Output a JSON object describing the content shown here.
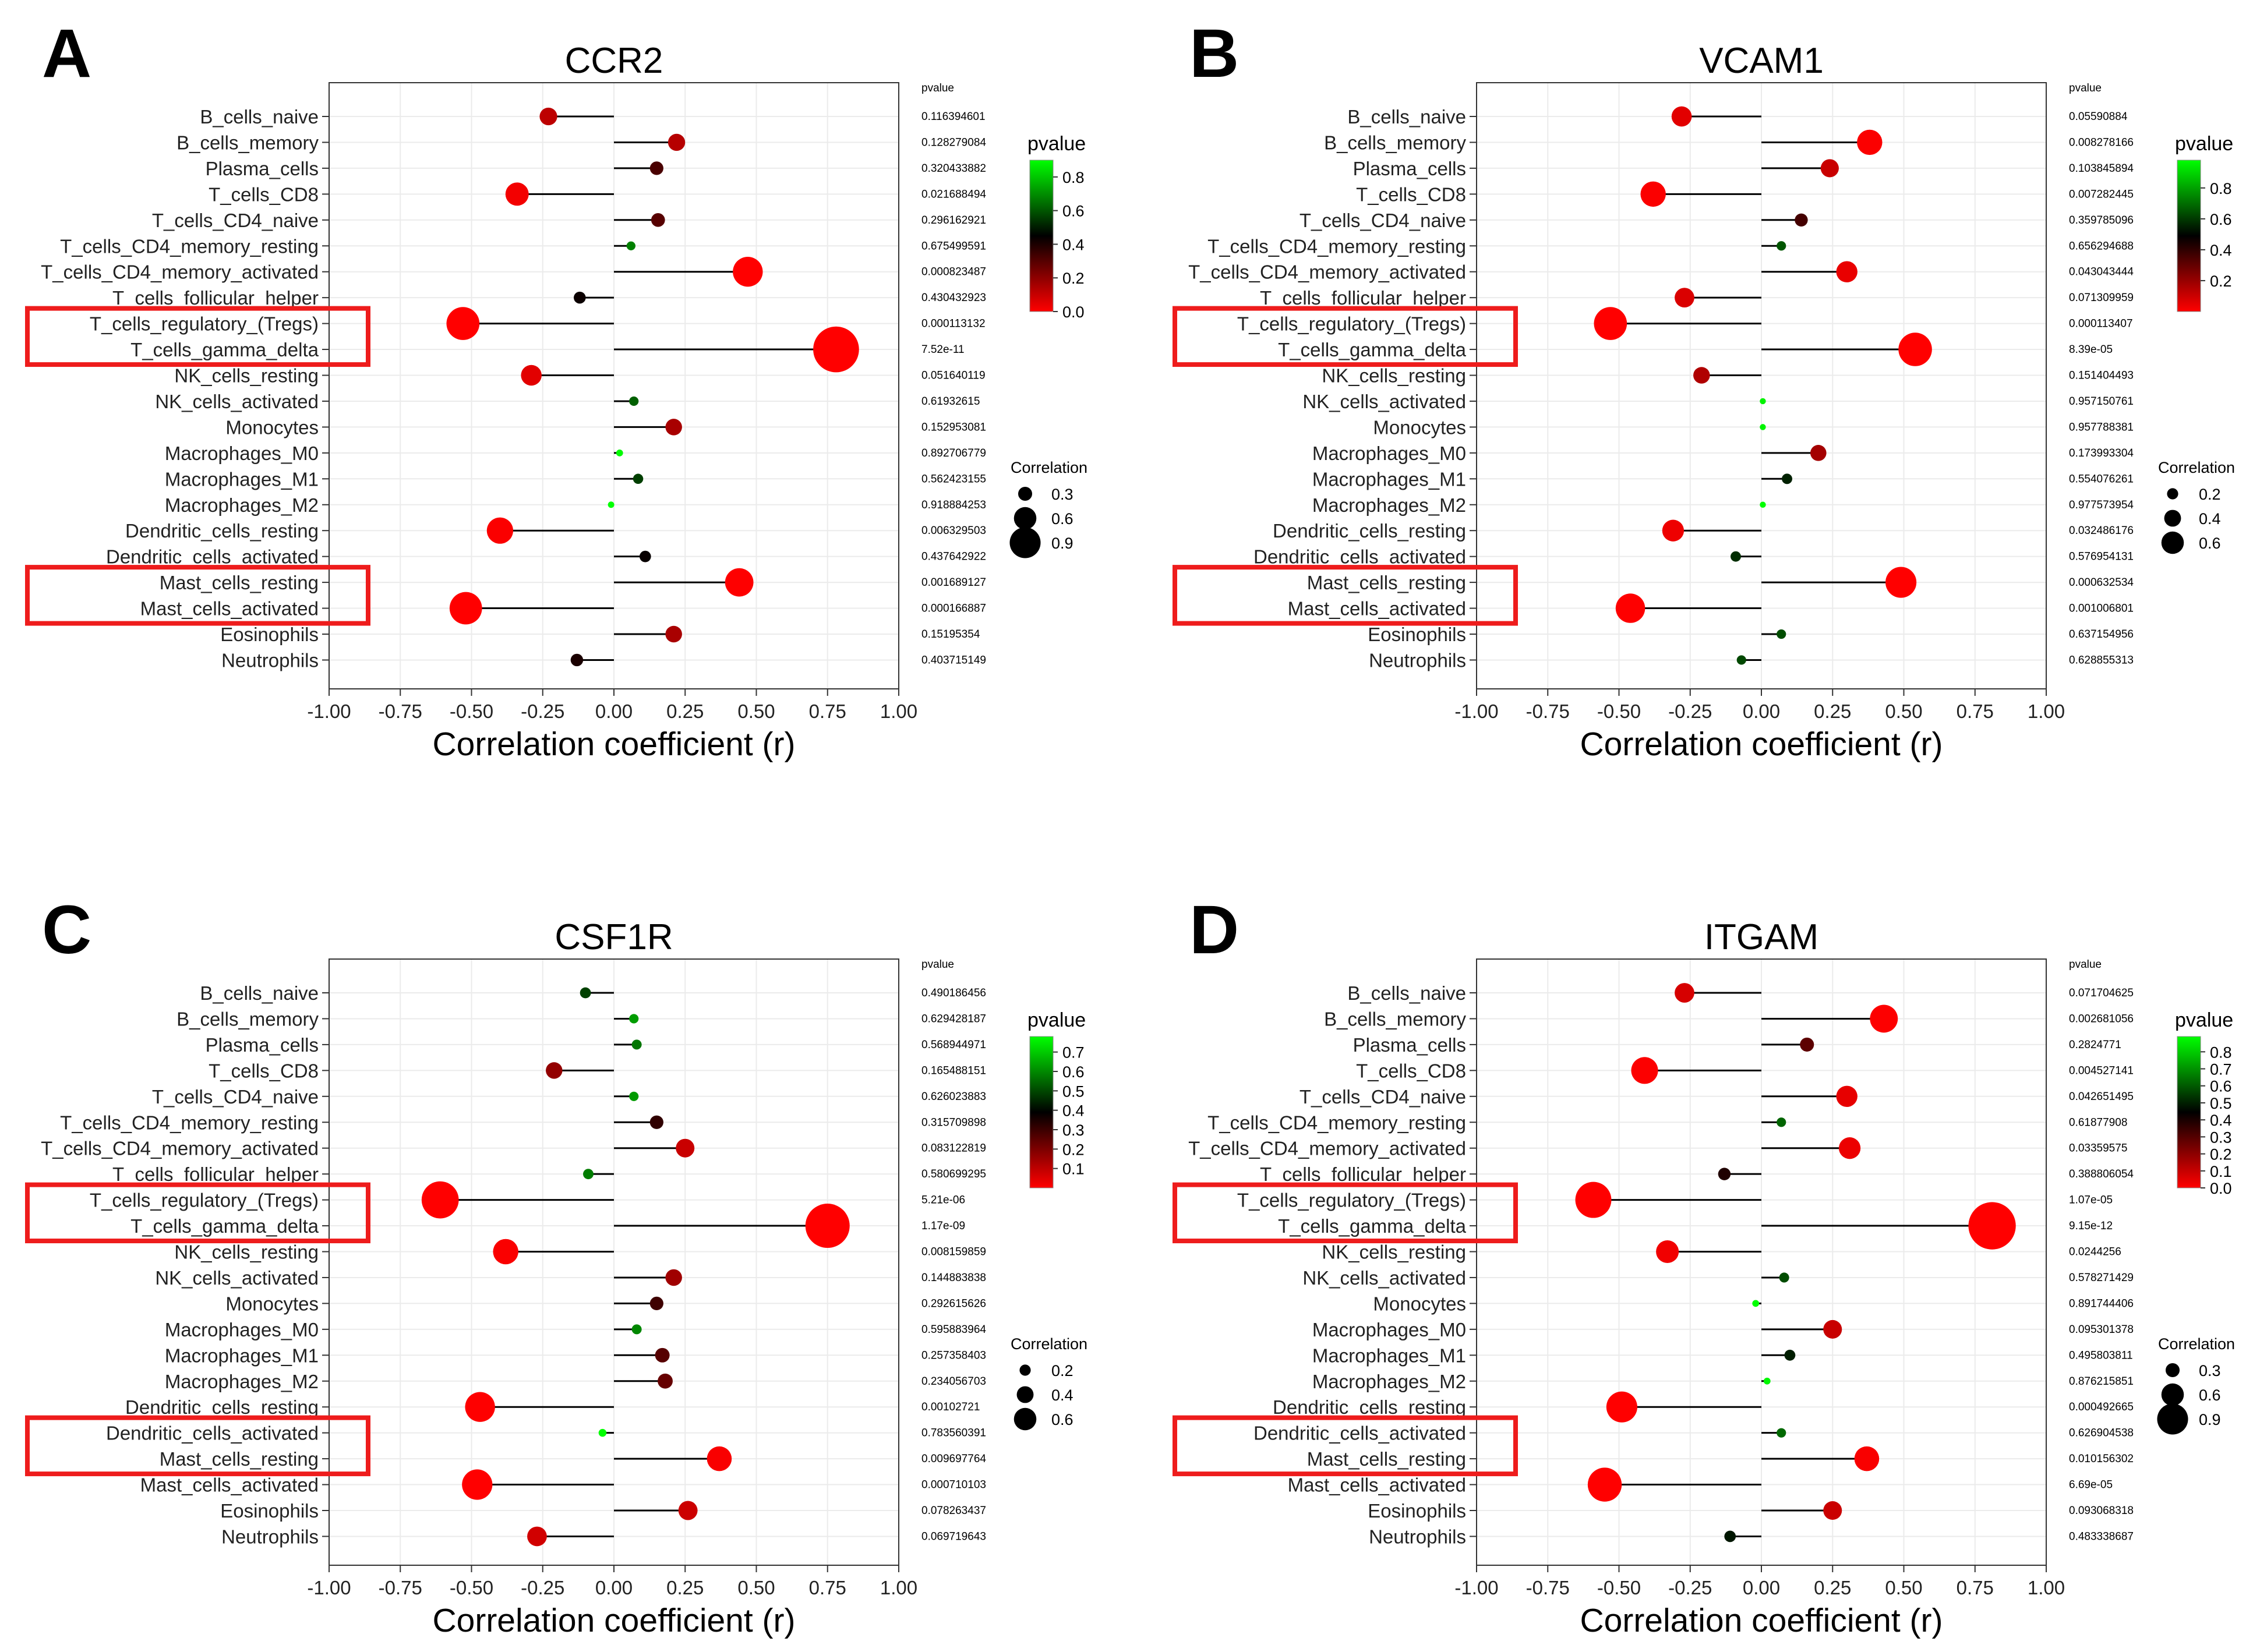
{
  "panel_colors": {
    "low_p": "#ff0000",
    "mid_p": "#000000",
    "high_p": "#00ff00",
    "highlight_box": "#ee1c1c"
  },
  "axis": {
    "xlabel": "Correlation coefficient (r)",
    "xticks": [
      "-1.00",
      "-0.75",
      "-0.50",
      "-0.25",
      "0.00",
      "0.25",
      "0.50",
      "0.75",
      "1.00"
    ]
  },
  "legend_labels": {
    "pvalue_header": "pvalue",
    "pvalue_title": "pvalue",
    "size_title": "Correlation"
  },
  "chart_data": [
    {
      "type": "lollipop",
      "panel_letter": "A",
      "title": "CCR2",
      "xlim": [
        -1,
        1
      ],
      "pmax": 0.9,
      "categories": [
        "B_cells_naive",
        "B_cells_memory",
        "Plasma_cells",
        "T_cells_CD8",
        "T_cells_CD4_naive",
        "T_cells_CD4_memory_resting",
        "T_cells_CD4_memory_activated",
        "T_cells_follicular_helper",
        "T_cells_regulatory_(Tregs)",
        "T_cells_gamma_delta",
        "NK_cells_resting",
        "NK_cells_activated",
        "Monocytes",
        "Macrophages_M0",
        "Macrophages_M1",
        "Macrophages_M2",
        "Dendritic_cells_resting",
        "Dendritic_cells_activated",
        "Mast_cells_resting",
        "Mast_cells_activated",
        "Eosinophils",
        "Neutrophils"
      ],
      "values": [
        -0.23,
        0.22,
        0.15,
        -0.34,
        0.155,
        0.06,
        0.47,
        -0.12,
        -0.53,
        0.78,
        -0.29,
        0.07,
        0.21,
        0.02,
        0.085,
        -0.01,
        -0.4,
        0.11,
        0.44,
        -0.52,
        0.21,
        -0.13
      ],
      "pvalue_text": [
        "0.116394601",
        "0.128279084",
        "0.320433882",
        "0.021688494",
        "0.296162921",
        "0.675499591",
        "0.000823487",
        "0.430432923",
        "0.000113132",
        "7.52e-11",
        "0.051640119",
        "0.61932615",
        "0.152953081",
        "0.892706779",
        "0.562423155",
        "0.918884253",
        "0.006329503",
        "0.437642922",
        "0.001689127",
        "0.000166887",
        "0.15195354",
        "0.403715149"
      ],
      "pvalues": [
        0.116,
        0.128,
        0.32,
        0.0217,
        0.296,
        0.675,
        0.0008,
        0.43,
        0.0001,
        0.0,
        0.0516,
        0.619,
        0.153,
        0.893,
        0.562,
        0.919,
        0.0063,
        0.438,
        0.0017,
        0.0002,
        0.152,
        0.404
      ],
      "highlight_groups": [
        [
          8,
          9
        ],
        [
          18,
          19
        ]
      ],
      "pvalue_legend_ticks": [
        "0.8",
        "0.6",
        "0.4",
        "0.2",
        "0.0"
      ],
      "pvalue_legend_tick_values": [
        0.8,
        0.6,
        0.4,
        0.2,
        0.0
      ],
      "size_legend_labels": [
        "0.3",
        "0.6",
        "0.9"
      ],
      "size_legend_values": [
        0.3,
        0.6,
        0.9
      ]
    },
    {
      "type": "lollipop",
      "panel_letter": "B",
      "title": "VCAM1",
      "xlim": [
        -1,
        1
      ],
      "pmax": 0.98,
      "categories": [
        "B_cells_naive",
        "B_cells_memory",
        "Plasma_cells",
        "T_cells_CD8",
        "T_cells_CD4_naive",
        "T_cells_CD4_memory_resting",
        "T_cells_CD4_memory_activated",
        "T_cells_follicular_helper",
        "T_cells_regulatory_(Tregs)",
        "T_cells_gamma_delta",
        "NK_cells_resting",
        "NK_cells_activated",
        "Monocytes",
        "Macrophages_M0",
        "Macrophages_M1",
        "Macrophages_M2",
        "Dendritic_cells_resting",
        "Dendritic_cells_activated",
        "Mast_cells_resting",
        "Mast_cells_activated",
        "Eosinophils",
        "Neutrophils"
      ],
      "values": [
        -0.28,
        0.38,
        0.24,
        -0.38,
        0.14,
        0.07,
        0.3,
        -0.27,
        -0.53,
        0.54,
        -0.21,
        0.005,
        0.005,
        0.2,
        0.09,
        0.005,
        -0.31,
        -0.09,
        0.49,
        -0.46,
        0.07,
        -0.07
      ],
      "pvalue_text": [
        "0.05590884",
        "0.008278166",
        "0.103845894",
        "0.007282445",
        "0.359785096",
        "0.656294688",
        "0.043043444",
        "0.071309959",
        "0.000113407",
        "8.39e-05",
        "0.151404493",
        "0.957150761",
        "0.957788381",
        "0.173993304",
        "0.554076261",
        "0.977573954",
        "0.032486176",
        "0.576954131",
        "0.000632534",
        "0.001006801",
        "0.637154956",
        "0.628855313"
      ],
      "pvalues": [
        0.0559,
        0.0083,
        0.104,
        0.0073,
        0.36,
        0.656,
        0.043,
        0.0713,
        0.0001,
        0.0001,
        0.151,
        0.957,
        0.958,
        0.174,
        0.554,
        0.978,
        0.0325,
        0.577,
        0.0006,
        0.001,
        0.637,
        0.629
      ],
      "highlight_groups": [
        [
          8,
          9
        ],
        [
          18,
          19
        ]
      ],
      "pvalue_legend_ticks": [
        "0.8",
        "0.6",
        "0.4",
        "0.2"
      ],
      "pvalue_legend_tick_values": [
        0.8,
        0.6,
        0.4,
        0.2
      ],
      "size_legend_labels": [
        "0.2",
        "0.4",
        "0.6"
      ],
      "size_legend_values": [
        0.2,
        0.4,
        0.6
      ]
    },
    {
      "type": "lollipop",
      "panel_letter": "C",
      "title": "CSF1R",
      "xlim": [
        -1,
        1
      ],
      "pmax": 0.78,
      "categories": [
        "B_cells_naive",
        "B_cells_memory",
        "Plasma_cells",
        "T_cells_CD8",
        "T_cells_CD4_naive",
        "T_cells_CD4_memory_resting",
        "T_cells_CD4_memory_activated",
        "T_cells_follicular_helper",
        "T_cells_regulatory_(Tregs)",
        "T_cells_gamma_delta",
        "NK_cells_resting",
        "NK_cells_activated",
        "Monocytes",
        "Macrophages_M0",
        "Macrophages_M1",
        "Macrophages_M2",
        "Dendritic_cells_resting",
        "Dendritic_cells_activated",
        "Mast_cells_resting",
        "Mast_cells_activated",
        "Eosinophils",
        "Neutrophils"
      ],
      "values": [
        -0.1,
        0.07,
        0.08,
        -0.21,
        0.07,
        0.15,
        0.25,
        -0.09,
        -0.61,
        0.75,
        -0.38,
        0.21,
        0.15,
        0.08,
        0.17,
        0.18,
        -0.47,
        -0.04,
        0.37,
        -0.48,
        0.26,
        -0.27
      ],
      "pvalue_text": [
        "0.490186456",
        "0.629428187",
        "0.568944971",
        "0.165488151",
        "0.626023883",
        "0.315709898",
        "0.083122819",
        "0.580699295",
        "5.21e-06",
        "1.17e-09",
        "0.008159859",
        "0.144883838",
        "0.292615626",
        "0.595883964",
        "0.257358403",
        "0.234056703",
        "0.00102721",
        "0.783560391",
        "0.009697764",
        "0.000710103",
        "0.078263437",
        "0.069719643"
      ],
      "pvalues": [
        0.49,
        0.629,
        0.569,
        0.165,
        0.626,
        0.316,
        0.0831,
        0.581,
        0.0,
        0.0,
        0.0082,
        0.145,
        0.293,
        0.596,
        0.257,
        0.234,
        0.001,
        0.784,
        0.0097,
        0.0007,
        0.0783,
        0.0697
      ],
      "highlight_groups": [
        [
          8,
          9
        ],
        [
          17,
          18
        ]
      ],
      "pvalue_legend_ticks": [
        "0.7",
        "0.6",
        "0.5",
        "0.4",
        "0.3",
        "0.2",
        "0.1"
      ],
      "pvalue_legend_tick_values": [
        0.7,
        0.6,
        0.5,
        0.4,
        0.3,
        0.2,
        0.1
      ],
      "size_legend_labels": [
        "0.2",
        "0.4",
        "0.6"
      ],
      "size_legend_values": [
        0.2,
        0.4,
        0.6
      ]
    },
    {
      "type": "lollipop",
      "panel_letter": "D",
      "title": "ITGAM",
      "xlim": [
        -1,
        1
      ],
      "pmax": 0.89,
      "categories": [
        "B_cells_naive",
        "B_cells_memory",
        "Plasma_cells",
        "T_cells_CD8",
        "T_cells_CD4_naive",
        "T_cells_CD4_memory_resting",
        "T_cells_CD4_memory_activated",
        "T_cells_follicular_helper",
        "T_cells_regulatory_(Tregs)",
        "T_cells_gamma_delta",
        "NK_cells_resting",
        "NK_cells_activated",
        "Monocytes",
        "Macrophages_M0",
        "Macrophages_M1",
        "Macrophages_M2",
        "Dendritic_cells_resting",
        "Dendritic_cells_activated",
        "Mast_cells_resting",
        "Mast_cells_activated",
        "Eosinophils",
        "Neutrophils"
      ],
      "values": [
        -0.27,
        0.43,
        0.16,
        -0.41,
        0.3,
        0.07,
        0.31,
        -0.13,
        -0.59,
        0.81,
        -0.33,
        0.08,
        -0.02,
        0.25,
        0.1,
        0.02,
        -0.49,
        0.07,
        0.37,
        -0.55,
        0.25,
        -0.11
      ],
      "pvalue_text": [
        "0.071704625",
        "0.002681056",
        "0.2824771",
        "0.004527141",
        "0.042651495",
        "0.61877908",
        "0.03359575",
        "0.388806054",
        "1.07e-05",
        "9.15e-12",
        "0.0244256",
        "0.578271429",
        "0.891744406",
        "0.095301378",
        "0.495803811",
        "0.876215851",
        "0.000492665",
        "0.626904538",
        "0.010156302",
        "6.69e-05",
        "0.093068318",
        "0.483338687"
      ],
      "pvalues": [
        0.0717,
        0.0027,
        0.282,
        0.0045,
        0.0427,
        0.619,
        0.0336,
        0.389,
        0.0,
        0.0,
        0.0244,
        0.578,
        0.892,
        0.0953,
        0.496,
        0.876,
        0.0005,
        0.627,
        0.0102,
        0.0001,
        0.0931,
        0.483
      ],
      "highlight_groups": [
        [
          8,
          9
        ],
        [
          17,
          18
        ]
      ],
      "pvalue_legend_ticks": [
        "0.8",
        "0.7",
        "0.6",
        "0.5",
        "0.4",
        "0.3",
        "0.2",
        "0.1",
        "0.0"
      ],
      "pvalue_legend_tick_values": [
        0.8,
        0.7,
        0.6,
        0.5,
        0.4,
        0.3,
        0.2,
        0.1,
        0.0
      ],
      "size_legend_labels": [
        "0.3",
        "0.6",
        "0.9"
      ],
      "size_legend_values": [
        0.3,
        0.6,
        0.9
      ]
    }
  ]
}
